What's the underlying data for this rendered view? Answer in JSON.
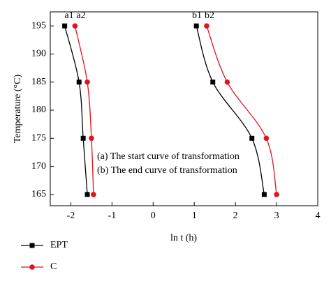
{
  "chart_data": {
    "type": "line",
    "x_label": "ln t (h)",
    "y_label": "Temperature (°C)",
    "xlim": [
      -2.5,
      4
    ],
    "xticks": [
      -2,
      -1,
      0,
      1,
      2,
      3,
      4
    ],
    "ylim": [
      163,
      197.5
    ],
    "yticks": [
      165,
      170,
      175,
      180,
      185,
      190,
      195
    ],
    "y": [
      195,
      185,
      175,
      165
    ],
    "series": [
      {
        "name": "EPT",
        "color": "#000000",
        "marker": "square",
        "start": [
          -2.15,
          -1.8,
          -1.7,
          -1.6
        ],
        "end": [
          1.05,
          1.45,
          2.4,
          2.7
        ]
      },
      {
        "name": "C",
        "color": "#e0141e",
        "marker": "circle",
        "start": [
          -1.9,
          -1.6,
          -1.5,
          -1.45
        ],
        "end": [
          1.3,
          1.8,
          2.75,
          3.0
        ]
      }
    ],
    "curve_labels": [
      "a1",
      "a2",
      "b1",
      "b2"
    ],
    "annotations": [
      "(a) The start curve of transformation",
      "(b) The end curve of transformation"
    ]
  }
}
